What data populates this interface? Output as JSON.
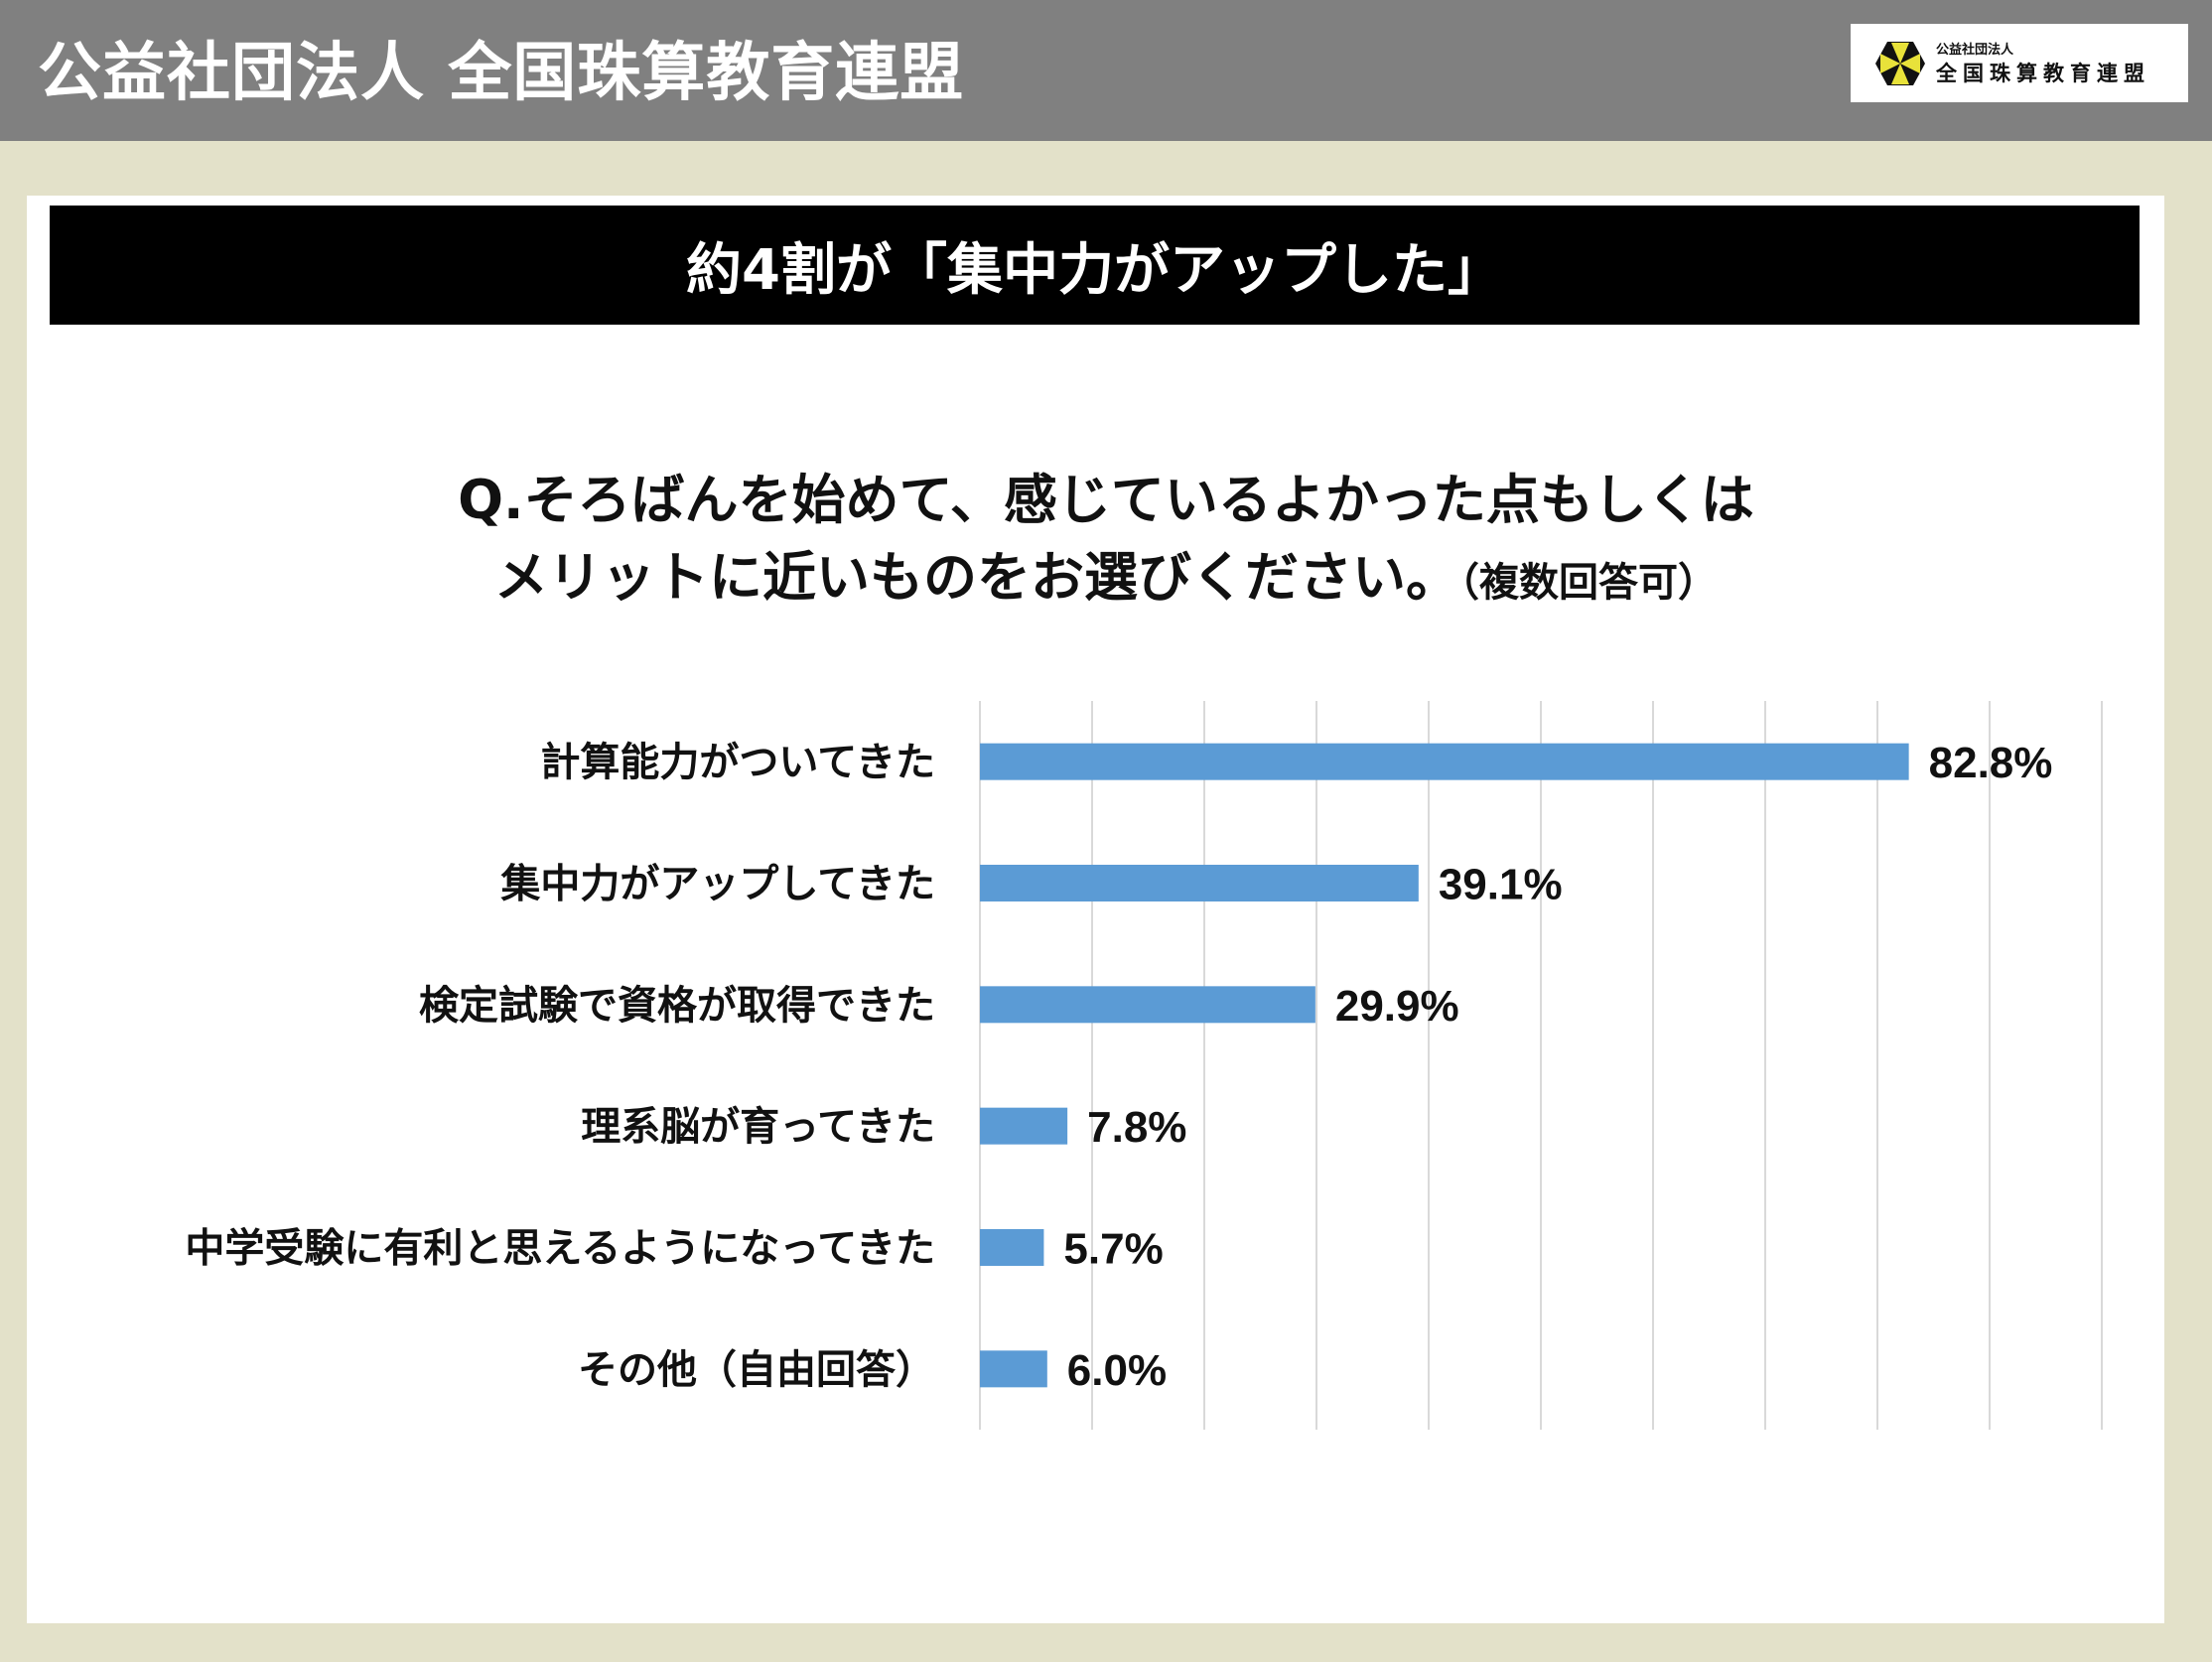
{
  "header": {
    "org_name": "公益社団法人 全国珠算教育連盟",
    "logo": {
      "small": "公益社団法人",
      "large": "全国珠算教育連盟"
    }
  },
  "banner": {
    "title": "約4割が「集中力がアップした」"
  },
  "question": {
    "line1": "Q.そろばんを始めて、感じているよかった点もしくは",
    "line2": "メリットに近いものをお選びください。",
    "note": "（複数回答可）"
  },
  "chart_data": {
    "type": "bar",
    "orientation": "horizontal",
    "categories": [
      "計算能力がついてきた",
      "集中力がアップしてきた",
      "検定試験で資格が取得できた",
      "理系脳が育ってきた",
      "中学受験に有利と思えるようになってきた",
      "その他（自由回答）"
    ],
    "values": [
      82.8,
      39.1,
      29.9,
      7.8,
      5.7,
      6.0
    ],
    "data_labels": [
      "82.8%",
      "39.1%",
      "29.9%",
      "7.8%",
      "5.7%",
      "6.0%"
    ],
    "xlim": [
      0,
      100
    ],
    "grid": true,
    "bar_color": "#5b9bd5"
  }
}
